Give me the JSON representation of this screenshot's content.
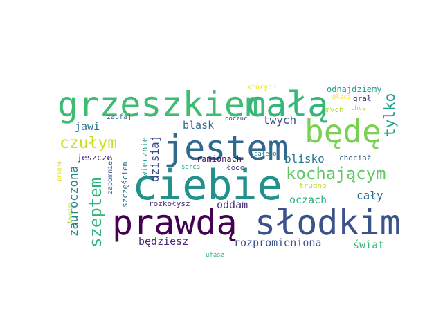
{
  "words": [
    {
      "text": "grzeszkiem",
      "color": "#3fbc73"
    },
    {
      "text": "całą",
      "color": "#35b779"
    },
    {
      "text": "jestem",
      "color": "#31688e"
    },
    {
      "text": "będę",
      "color": "#7ad151"
    },
    {
      "text": "ciebie",
      "color": "#21918c"
    },
    {
      "text": "prawdą",
      "color": "#440154"
    },
    {
      "text": "słodkim",
      "color": "#3b528b"
    },
    {
      "text": "czułym",
      "color": "#c8e020"
    },
    {
      "text": "kochającym",
      "color": "#5ec962"
    },
    {
      "text": "szeptem",
      "color": "#2fb47c"
    },
    {
      "text": "tylko",
      "color": "#1fa088"
    },
    {
      "text": "zauroczona",
      "color": "#26828e"
    },
    {
      "text": "dzisiaj",
      "color": "#3e4989"
    },
    {
      "text": "blask",
      "color": "#31688e"
    },
    {
      "text": "twych",
      "color": "#3b528b"
    },
    {
      "text": "jawi",
      "color": "#2c728e"
    },
    {
      "text": "blisko",
      "color": "#2a788e"
    },
    {
      "text": "oczach",
      "color": "#2fb47c"
    },
    {
      "text": "cały",
      "color": "#2c728e"
    },
    {
      "text": "oddam",
      "color": "#46327e"
    },
    {
      "text": "rozpromieniona",
      "color": "#3b528b"
    },
    {
      "text": "będziesz",
      "color": "#482878"
    },
    {
      "text": "świat",
      "color": "#35b779"
    },
    {
      "text": "odnajdziemy",
      "color": "#1f9e89"
    },
    {
      "text": "których",
      "color": "#e5e419"
    },
    {
      "text": "płacz",
      "color": "#fde725"
    },
    {
      "text": "grał",
      "color": "#472d7b"
    },
    {
      "text": "mych",
      "color": "#b5de2b"
    },
    {
      "text": "chcę",
      "color": "#a5db36"
    },
    {
      "text": "chociaż",
      "color": "#33638d"
    },
    {
      "text": "zaufaj",
      "color": "#31688e"
    },
    {
      "text": "poczuć",
      "color": "#414487"
    },
    {
      "text": "jeszcze",
      "color": "#482475"
    },
    {
      "text": "zapomnieć",
      "color": "#3b528b"
    },
    {
      "text": "szczęściem",
      "color": "#2d708e"
    },
    {
      "text": "wiecznie",
      "color": "#1f988b"
    },
    {
      "text": "ramionach",
      "color": "#471164"
    },
    {
      "text": "łooo",
      "color": "#46327e"
    },
    {
      "text": "całego",
      "color": "#2a788e"
    },
    {
      "text": "serca",
      "color": "#1fa088"
    },
    {
      "text": "trudno",
      "color": "#c2df23"
    },
    {
      "text": "rozkołysz",
      "color": "#472a7a"
    },
    {
      "text": "pragnę",
      "color": "#d8e219"
    },
    {
      "text": "twoim",
      "color": "#addc30"
    },
    {
      "text": "ufasz",
      "color": "#2fb47c"
    }
  ]
}
